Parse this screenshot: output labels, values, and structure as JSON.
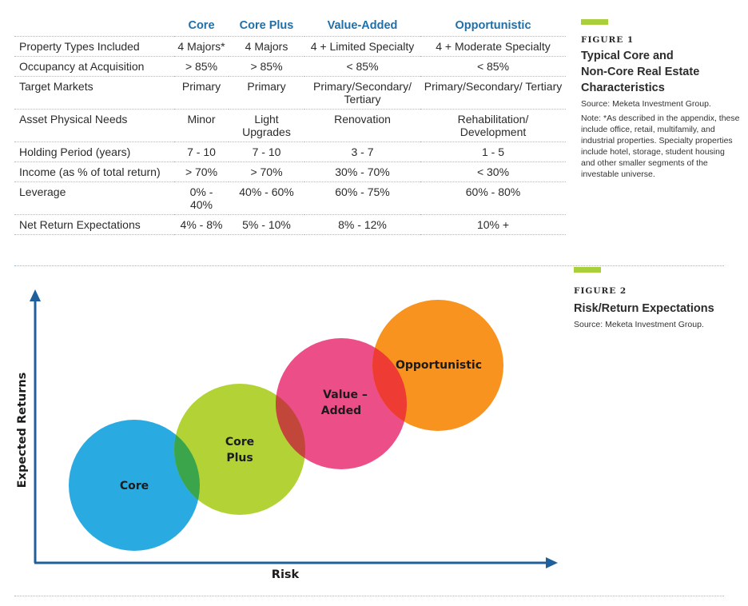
{
  "figure1": {
    "label": "FIGURE 1",
    "title_lines": [
      "Typical Core and",
      "Non-Core Real Estate",
      "Characteristics"
    ],
    "source": "Source: Meketa Investment Group.",
    "note": "Note: *As described in the appendix, these include office, retail, multifamily, and industrial properties.  Specialty properties include hotel, storage, student housing and other smaller segments of the investable universe.",
    "accent_color": "#a9cf3d",
    "header_color": "#1f6fa8",
    "columns": [
      "",
      "Core",
      "Core Plus",
      "Value-Added",
      "Opportunistic"
    ],
    "rows": [
      [
        "Property Types Included",
        "4 Majors*",
        "4 Majors",
        "4 + Limited Specialty",
        "4 + Moderate Specialty"
      ],
      [
        "Occupancy at Acquisition",
        "> 85%",
        "> 85%",
        "< 85%",
        "< 85%"
      ],
      [
        "Target Markets",
        "Primary",
        "Primary",
        "Primary/Secondary/ Tertiary",
        "Primary/Secondary/ Tertiary"
      ],
      [
        "Asset Physical Needs",
        "Minor",
        "Light Upgrades",
        "Renovation",
        "Rehabilitation/ Development"
      ],
      [
        "Holding Period (years)",
        "7 - 10",
        "7 - 10",
        "3 - 7",
        "1 - 5"
      ],
      [
        "Income (as % of total return)",
        "> 70%",
        "> 70%",
        "30% - 70%",
        "< 30%"
      ],
      [
        "Leverage",
        "0% - 40%",
        "40% - 60%",
        "60% - 75%",
        "60% - 80%"
      ],
      [
        "Net Return Expectations",
        "4% - 8%",
        "5%  - 10%",
        "8% - 12%",
        "10% +"
      ]
    ]
  },
  "figure2": {
    "label": "FIGURE 2",
    "title": "Risk/Return Expectations",
    "source": "Source: Meketa Investment Group.",
    "x_axis_label": "Risk",
    "y_axis_label": "Expected Returns",
    "axis_color": "#1f5f9b",
    "bubbles": [
      {
        "label_lines": [
          "Core"
        ],
        "color": "#29abe2"
      },
      {
        "label_lines": [
          "Core",
          "Plus"
        ],
        "color": "#b2d235"
      },
      {
        "label_lines": [
          "Value –",
          "Added"
        ],
        "color": "#ec4e88"
      },
      {
        "label_lines": [
          "Opportunistic"
        ],
        "color": "#f7931e"
      }
    ],
    "overlap_colors": [
      "#3aa54a",
      "#c2463a",
      "#ee3b33"
    ]
  }
}
